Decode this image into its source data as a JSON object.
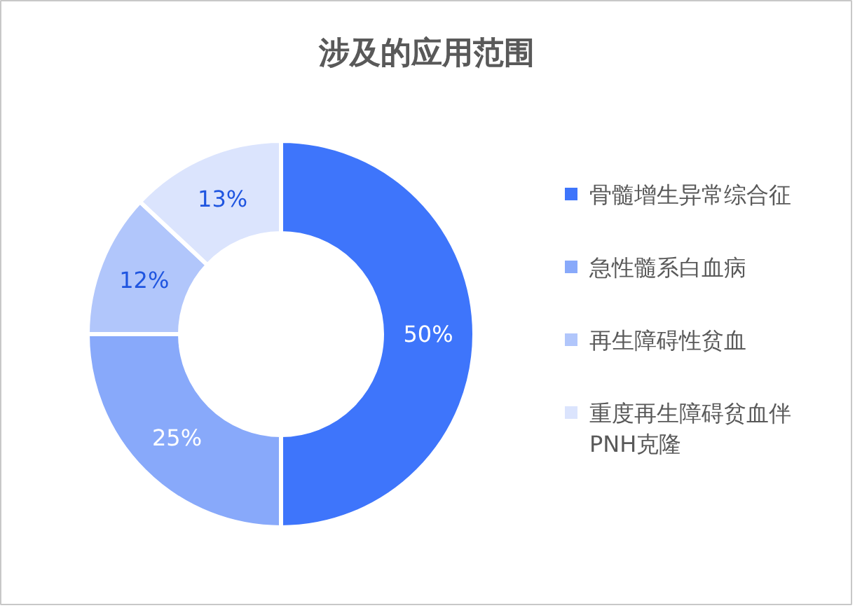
{
  "chart_data": {
    "type": "donut",
    "title": "涉及的应用范围",
    "categories": [
      "骨髓增生异常综合征",
      "急性髓系白血病",
      "再生障碍性贫血",
      "重度再生障碍贫血伴PNH克隆"
    ],
    "values": [
      50,
      25,
      12,
      13
    ],
    "colors": [
      "#3e75fb",
      "#88a9fa",
      "#b1c6fb",
      "#dbe4fd"
    ],
    "value_labels": [
      "50%",
      "25%",
      "12%",
      "13%"
    ],
    "legend": "right"
  }
}
